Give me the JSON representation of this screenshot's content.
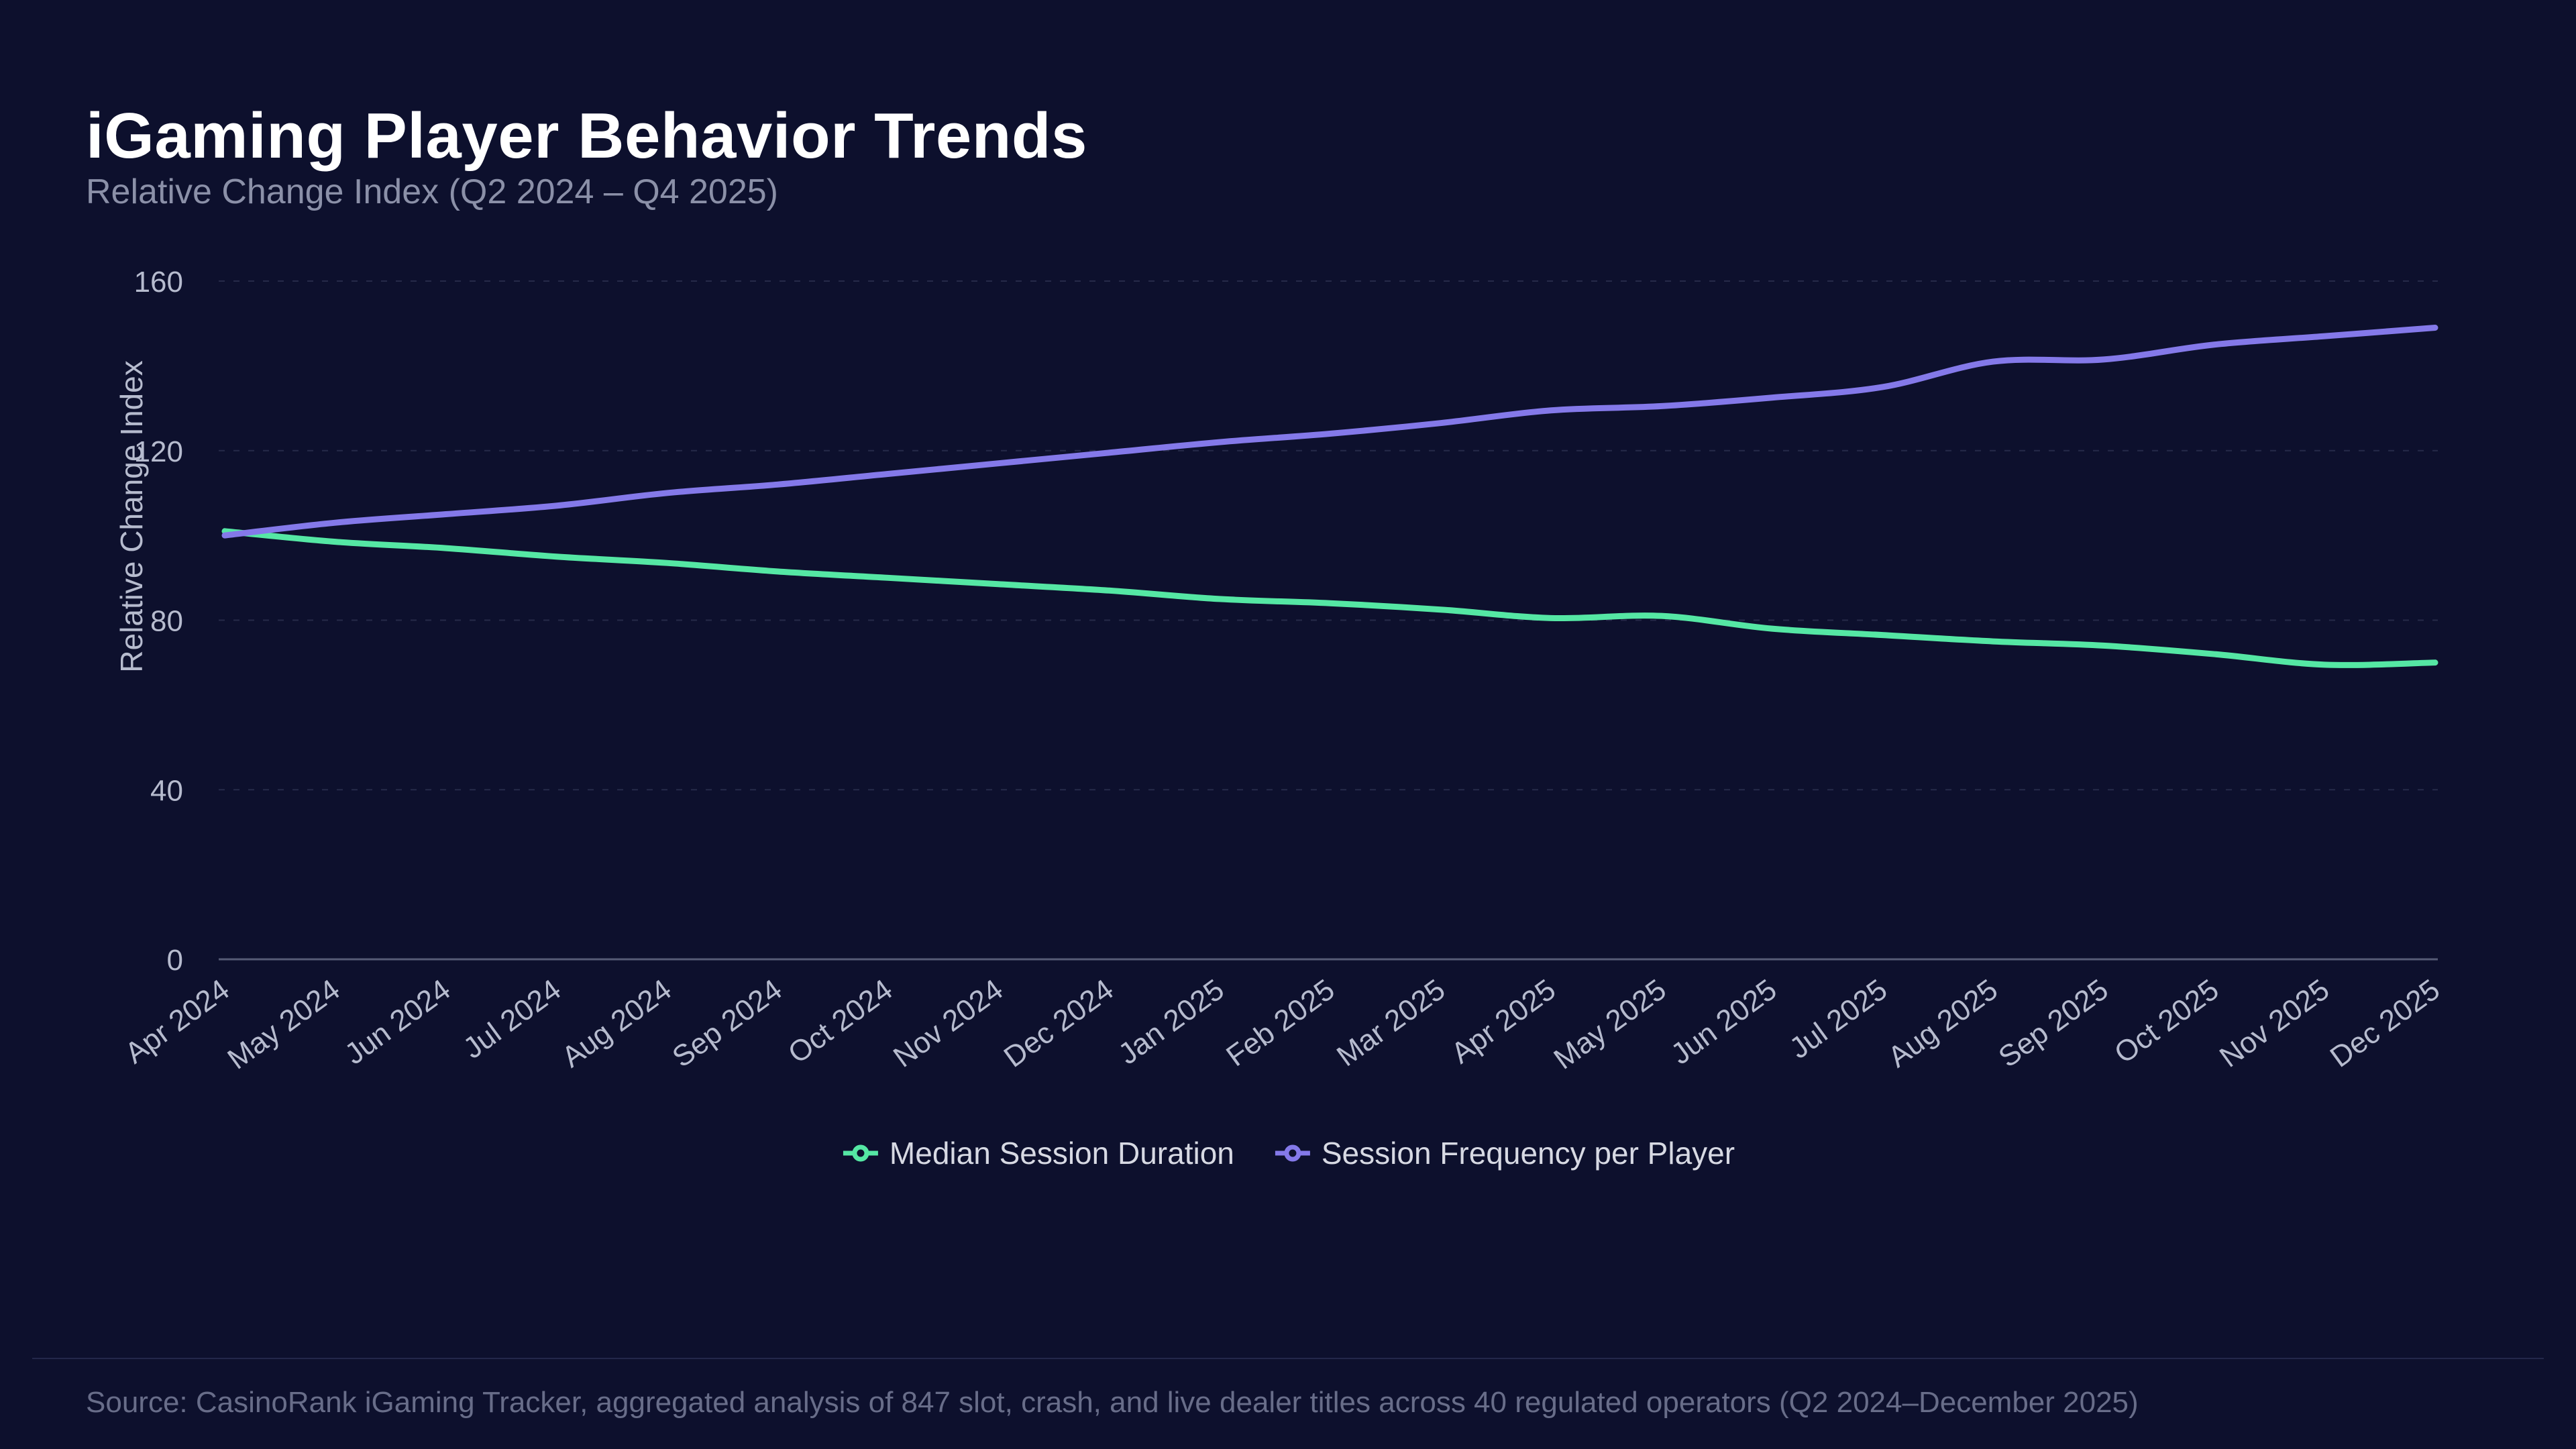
{
  "header": {
    "title": "iGaming Player Behavior Trends",
    "subtitle": "Relative Change Index (Q2 2024 – Q4 2025)"
  },
  "legend": {
    "items": [
      {
        "label": "Median Session Duration",
        "color": "#55e7a4"
      },
      {
        "label": "Session Frequency per Player",
        "color": "#8479e9"
      }
    ]
  },
  "footer": {
    "source": "Source: CasinoRank iGaming Tracker, aggregated analysis of 847 slot, crash, and live dealer titles across 40 regulated operators (Q2 2024–December 2025)"
  },
  "colors": {
    "background": "#0d102d",
    "grid": "#262a49",
    "axis_line": "#565b76",
    "tick_text": "#b6bbce",
    "axis_title_text": "#b6bbce",
    "series_green": "#55e7a4",
    "series_purple": "#8479e9"
  },
  "chart_data": {
    "type": "line",
    "title": "iGaming Player Behavior Trends",
    "subtitle": "Relative Change Index (Q2 2024 – Q4 2025)",
    "xlabel": "",
    "ylabel": "Relative Change Index",
    "ylim": [
      0,
      160
    ],
    "yticks": [
      0,
      40,
      80,
      120,
      160
    ],
    "grid": "horizontal-dashed",
    "legend_position": "bottom-center",
    "categories": [
      "Apr 2024",
      "May 2024",
      "Jun 2024",
      "Jul 2024",
      "Aug 2024",
      "Sep 2024",
      "Oct 2024",
      "Nov 2024",
      "Dec 2024",
      "Jan 2025",
      "Feb 2025",
      "Mar 2025",
      "Apr 2025",
      "May 2025",
      "Jun 2025",
      "Jul 2025",
      "Aug 2025",
      "Sep 2025",
      "Oct 2025",
      "Nov 2025",
      "Dec 2025"
    ],
    "series": [
      {
        "name": "Median Session Duration",
        "color": "#55e7a4",
        "values": [
          101,
          98.5,
          97,
          95,
          93.5,
          91.5,
          90,
          88.5,
          87,
          85,
          84,
          82.5,
          80.5,
          81,
          78,
          76.5,
          75,
          74,
          72,
          69.5,
          70
        ]
      },
      {
        "name": "Session Frequency per Player",
        "color": "#8479e9",
        "values": [
          100,
          103,
          105,
          107,
          110,
          112,
          114.5,
          117,
          119.5,
          122,
          124,
          126.5,
          129.5,
          130.5,
          132.5,
          135,
          141,
          141.5,
          145,
          147,
          149
        ]
      }
    ]
  }
}
